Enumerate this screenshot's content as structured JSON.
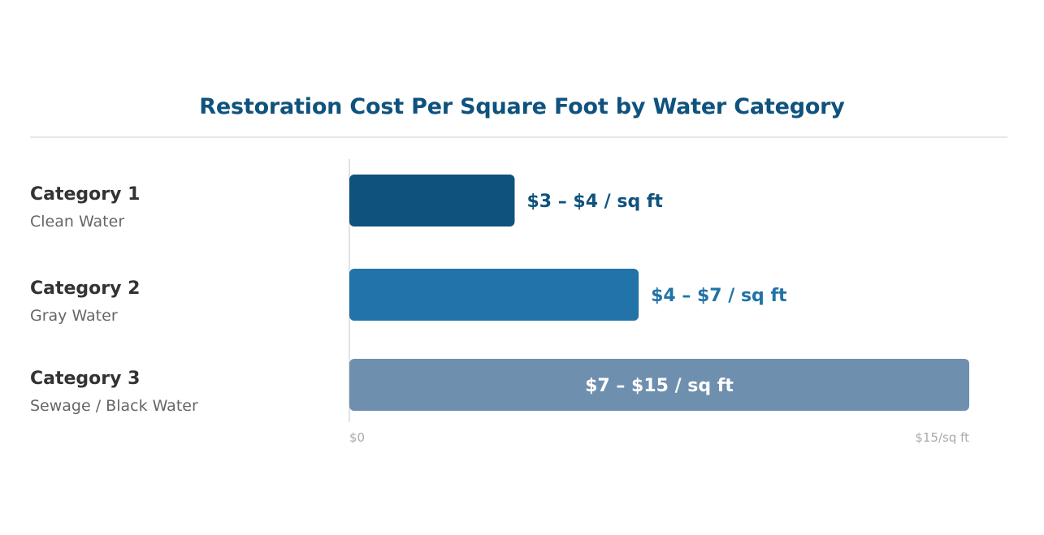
{
  "chart_data": {
    "type": "bar",
    "orientation": "horizontal",
    "title": "Restoration Cost Per Square Foot by Water Category",
    "xlim": [
      0,
      15
    ],
    "x_tick_labels": [
      "$0",
      "$15/sq ft"
    ],
    "categories": [
      {
        "name": "Category 1",
        "description": "Clean Water",
        "low": 3,
        "high": 4,
        "label": "$3 – $4 / sq ft",
        "color": "#0f527d",
        "label_color": "#0f527d",
        "label_inside": false
      },
      {
        "name": "Category 2",
        "description": "Gray Water",
        "low": 4,
        "high": 7,
        "label": "$4 – $7 / sq ft",
        "color": "#2173a8",
        "label_color": "#2173a8",
        "label_inside": false
      },
      {
        "name": "Category 3",
        "description": "Sewage / Black Water",
        "low": 7,
        "high": 15,
        "label": "$7 – $15 / sq ft",
        "color": "#6e8fae",
        "label_color": "#ffffff",
        "label_inside": true
      }
    ]
  }
}
